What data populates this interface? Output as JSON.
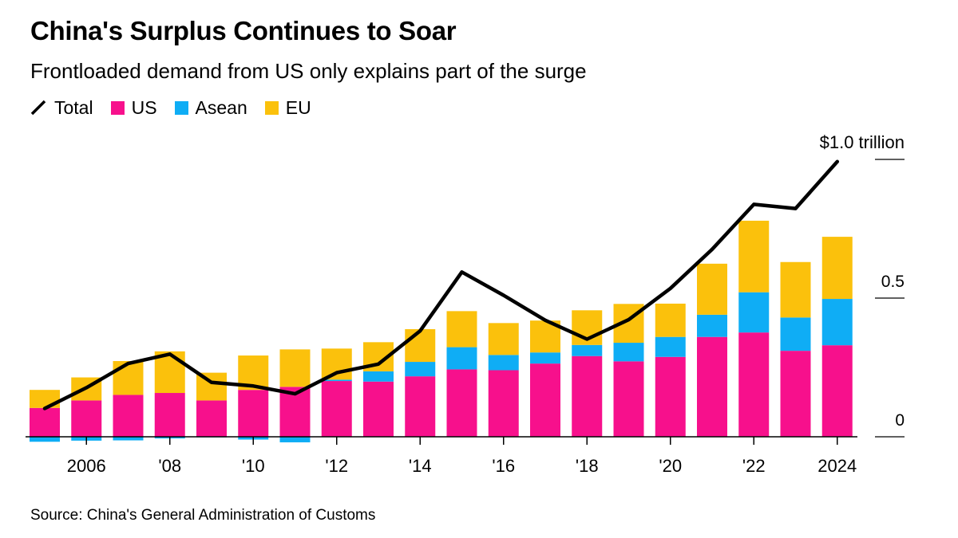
{
  "title": "China's Surplus Continues to Soar",
  "subtitle": "Frontloaded demand from US only explains part of the surge",
  "legend": [
    {
      "label": "Total",
      "color": "#000000",
      "kind": "line"
    },
    {
      "label": "US",
      "color": "#F7108C",
      "kind": "box"
    },
    {
      "label": "Asean",
      "color": "#0FADF5",
      "kind": "box"
    },
    {
      "label": "EU",
      "color": "#FBC10C",
      "kind": "box"
    }
  ],
  "source": "Source: China's General Administration of Customs",
  "colors": {
    "us": "#F7108C",
    "asean": "#0FADF5",
    "eu": "#FBC10C",
    "total": "#000000",
    "axis": "#000000"
  },
  "chart_data": {
    "type": "bar",
    "stacked": true,
    "title": "China's Surplus Continues to Soar",
    "subtitle": "Frontloaded demand from US only explains part of the surge",
    "xlabel": "",
    "ylabel": "",
    "unit": "trillion USD",
    "ylim": [
      0,
      1.0
    ],
    "yticks": [
      {
        "value": 0,
        "label": "0"
      },
      {
        "value": 0.5,
        "label": "0.5"
      },
      {
        "value": 1.0,
        "label": "$1.0 trillion"
      }
    ],
    "years": [
      2005,
      2006,
      2007,
      2008,
      2009,
      2010,
      2011,
      2012,
      2013,
      2014,
      2015,
      2016,
      2017,
      2018,
      2019,
      2020,
      2021,
      2022,
      2023,
      2024
    ],
    "xtick_labels": [
      {
        "year": 2006,
        "label": "2006"
      },
      {
        "year": 2008,
        "label": "'08"
      },
      {
        "year": 2010,
        "label": "'10"
      },
      {
        "year": 2012,
        "label": "'12"
      },
      {
        "year": 2014,
        "label": "'14"
      },
      {
        "year": 2016,
        "label": "'16"
      },
      {
        "year": 2018,
        "label": "'18"
      },
      {
        "year": 2020,
        "label": "'20"
      },
      {
        "year": 2022,
        "label": "'22"
      },
      {
        "year": 2024,
        "label": "2024"
      }
    ],
    "series": [
      {
        "name": "US",
        "values": [
          0.104,
          0.131,
          0.151,
          0.158,
          0.131,
          0.169,
          0.18,
          0.201,
          0.199,
          0.218,
          0.243,
          0.24,
          0.264,
          0.291,
          0.272,
          0.288,
          0.36,
          0.376,
          0.31,
          0.33
        ]
      },
      {
        "name": "Asean",
        "values": [
          -0.018,
          -0.014,
          -0.013,
          -0.006,
          -0.002,
          -0.01,
          -0.02,
          0.005,
          0.037,
          0.052,
          0.08,
          0.055,
          0.04,
          0.04,
          0.067,
          0.072,
          0.08,
          0.145,
          0.12,
          0.167
        ]
      },
      {
        "name": "EU",
        "values": [
          0.065,
          0.083,
          0.122,
          0.15,
          0.1,
          0.124,
          0.135,
          0.112,
          0.105,
          0.118,
          0.13,
          0.115,
          0.115,
          0.125,
          0.14,
          0.12,
          0.184,
          0.258,
          0.2,
          0.224
        ]
      },
      {
        "name": "Total",
        "type": "line",
        "values": [
          0.102,
          0.177,
          0.264,
          0.298,
          0.196,
          0.183,
          0.155,
          0.231,
          0.262,
          0.382,
          0.594,
          0.51,
          0.42,
          0.352,
          0.422,
          0.535,
          0.676,
          0.838,
          0.823,
          0.992
        ]
      }
    ]
  }
}
